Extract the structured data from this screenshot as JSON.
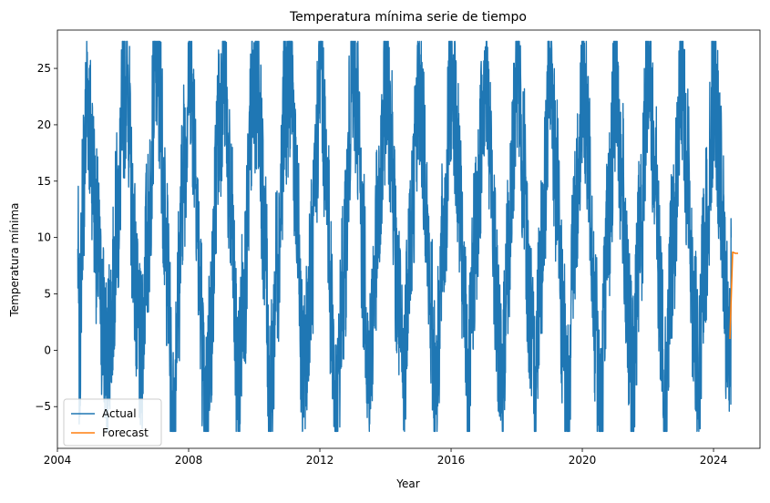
{
  "chart_data": {
    "type": "line",
    "title": "Temperatura mínima serie de tiempo",
    "xlabel": "Year",
    "ylabel": "Temperatura mínima",
    "xlim": [
      "2004-01-01",
      "2025-06-01"
    ],
    "ylim": [
      -8.7,
      28.4
    ],
    "x_ticks": [
      "2004",
      "2008",
      "2012",
      "2016",
      "2020",
      "2024"
    ],
    "x_tick_dates": [
      "2004-01-01",
      "2008-01-01",
      "2012-01-01",
      "2016-01-01",
      "2020-01-01",
      "2024-01-01"
    ],
    "y_ticks": [
      -5,
      0,
      5,
      10,
      15,
      20,
      25
    ],
    "grid": false,
    "legend_position": "lower-left",
    "series": [
      {
        "name": "Actual",
        "color": "#1f77b4",
        "description_points": [
          [
            "2004-08-15",
            9
          ],
          [
            "2004-09-01",
            0
          ],
          [
            "2004-10-15",
            15
          ],
          [
            "2004-12-01",
            23
          ],
          [
            "2005-01-15",
            18
          ],
          [
            "2005-03-15",
            10
          ],
          [
            "2005-05-15",
            3
          ],
          [
            "2005-07-01",
            -1
          ],
          [
            "2005-08-15",
            2
          ],
          [
            "2005-11-01",
            12
          ],
          [
            "2006-01-15",
            23
          ],
          [
            "2006-02-15",
            25
          ],
          [
            "2006-04-15",
            12
          ],
          [
            "2006-06-15",
            2
          ],
          [
            "2006-07-15",
            -1
          ],
          [
            "2006-10-01",
            10
          ],
          [
            "2007-01-01",
            26
          ],
          [
            "2007-02-15",
            22
          ],
          [
            "2007-05-01",
            8
          ],
          [
            "2007-07-15",
            -7
          ],
          [
            "2007-09-01",
            5
          ],
          [
            "2007-11-15",
            17
          ],
          [
            "2008-01-15",
            26
          ],
          [
            "2008-03-01",
            20
          ],
          [
            "2008-05-15",
            4
          ],
          [
            "2008-07-01",
            -7
          ],
          [
            "2008-09-01",
            2
          ],
          [
            "2008-12-01",
            20
          ],
          [
            "2009-02-01",
            25
          ],
          [
            "2009-04-15",
            12
          ],
          [
            "2009-07-01",
            -3
          ],
          [
            "2009-09-15",
            6
          ],
          [
            "2009-12-15",
            22
          ],
          [
            "2010-02-15",
            24
          ],
          [
            "2010-04-15",
            12
          ],
          [
            "2010-07-01",
            -4
          ],
          [
            "2010-09-15",
            8
          ],
          [
            "2010-12-15",
            22
          ],
          [
            "2011-02-15",
            25
          ],
          [
            "2011-05-01",
            10
          ],
          [
            "2011-07-01",
            -3
          ],
          [
            "2011-10-01",
            8
          ],
          [
            "2012-01-15",
            25
          ],
          [
            "2012-03-15",
            15
          ],
          [
            "2012-05-15",
            3
          ],
          [
            "2012-07-01",
            -7
          ],
          [
            "2012-09-15",
            6
          ],
          [
            "2013-01-01",
            24
          ],
          [
            "2013-02-15",
            22
          ],
          [
            "2013-05-01",
            8
          ],
          [
            "2013-07-01",
            -2
          ],
          [
            "2013-10-01",
            10
          ],
          [
            "2014-01-15",
            24
          ],
          [
            "2014-03-01",
            20
          ],
          [
            "2014-05-15",
            5
          ],
          [
            "2014-07-15",
            -2
          ],
          [
            "2014-10-01",
            10
          ],
          [
            "2015-01-15",
            24
          ],
          [
            "2015-03-15",
            16
          ],
          [
            "2015-05-15",
            4
          ],
          [
            "2015-07-15",
            -3
          ],
          [
            "2015-10-01",
            9
          ],
          [
            "2016-01-15",
            25
          ],
          [
            "2016-03-15",
            16
          ],
          [
            "2016-06-01",
            3
          ],
          [
            "2016-07-15",
            -2
          ],
          [
            "2016-10-01",
            10
          ],
          [
            "2017-01-15",
            25
          ],
          [
            "2017-03-15",
            17
          ],
          [
            "2017-06-01",
            3
          ],
          [
            "2017-07-15",
            -4
          ],
          [
            "2017-10-01",
            9
          ],
          [
            "2018-01-15",
            26
          ],
          [
            "2018-03-15",
            16
          ],
          [
            "2018-06-01",
            3
          ],
          [
            "2018-07-15",
            -3
          ],
          [
            "2018-10-01",
            9
          ],
          [
            "2019-01-15",
            25
          ],
          [
            "2019-03-15",
            15
          ],
          [
            "2019-06-01",
            2
          ],
          [
            "2019-07-15",
            -6
          ],
          [
            "2019-10-01",
            10
          ],
          [
            "2020-01-15",
            24
          ],
          [
            "2020-03-15",
            16
          ],
          [
            "2020-06-01",
            2
          ],
          [
            "2020-07-15",
            -6
          ],
          [
            "2020-10-01",
            9
          ],
          [
            "2021-01-15",
            24
          ],
          [
            "2021-03-15",
            15
          ],
          [
            "2021-06-01",
            2
          ],
          [
            "2021-07-15",
            -3
          ],
          [
            "2021-10-01",
            10
          ],
          [
            "2022-01-15",
            27
          ],
          [
            "2022-03-15",
            16
          ],
          [
            "2022-06-01",
            3
          ],
          [
            "2022-07-15",
            -5
          ],
          [
            "2022-10-01",
            9
          ],
          [
            "2023-01-15",
            25
          ],
          [
            "2023-03-15",
            16
          ],
          [
            "2023-06-01",
            3
          ],
          [
            "2023-07-15",
            -3
          ],
          [
            "2023-10-01",
            10
          ],
          [
            "2024-01-15",
            24
          ],
          [
            "2024-03-15",
            15
          ],
          [
            "2024-06-01",
            2
          ],
          [
            "2024-07-10",
            -2
          ],
          [
            "2024-07-15",
            10
          ]
        ]
      },
      {
        "name": "Forecast",
        "color": "#ff7f0e",
        "points": [
          [
            "2024-07-01",
            1
          ],
          [
            "2024-08-01",
            8.7
          ],
          [
            "2024-09-01",
            8.6
          ],
          [
            "2024-10-01",
            8.6
          ]
        ]
      }
    ]
  }
}
